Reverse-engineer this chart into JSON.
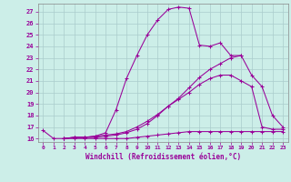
{
  "xlabel": "Windchill (Refroidissement éolien,°C)",
  "ylabel": "",
  "bg_color": "#cceee8",
  "line_color": "#990099",
  "grid_color": "#aacccc",
  "xlim": [
    -0.5,
    23.5
  ],
  "ylim": [
    15.7,
    27.7
  ],
  "yticks": [
    16,
    17,
    18,
    19,
    20,
    21,
    22,
    23,
    24,
    25,
    26,
    27
  ],
  "xticks": [
    0,
    1,
    2,
    3,
    4,
    5,
    6,
    7,
    8,
    9,
    10,
    11,
    12,
    13,
    14,
    15,
    16,
    17,
    18,
    19,
    20,
    21,
    22,
    23
  ],
  "lines": [
    {
      "x": [
        0,
        1,
        2,
        3,
        4,
        5,
        6,
        7,
        8,
        9,
        10,
        11,
        12,
        13,
        14,
        15,
        16,
        17,
        18,
        19
      ],
      "y": [
        16.7,
        16.0,
        16.0,
        16.1,
        16.1,
        16.2,
        16.5,
        18.5,
        21.2,
        23.2,
        25.0,
        26.3,
        27.2,
        27.4,
        27.3,
        24.1,
        24.0,
        24.3,
        23.2,
        23.2
      ]
    },
    {
      "x": [
        2,
        3,
        4,
        5,
        6,
        7,
        8,
        9,
        10,
        11,
        12,
        13,
        14,
        15,
        16,
        17,
        18,
        19,
        20,
        21,
        22,
        23
      ],
      "y": [
        16.0,
        16.1,
        16.1,
        16.2,
        16.3,
        16.4,
        16.6,
        17.0,
        17.5,
        18.1,
        18.8,
        19.4,
        20.0,
        20.7,
        21.2,
        21.5,
        21.5,
        21.0,
        20.5,
        17.0,
        16.8,
        16.8
      ]
    },
    {
      "x": [
        2,
        3,
        4,
        5,
        6,
        7,
        8,
        9,
        10,
        11,
        12,
        13,
        14,
        15,
        16,
        17,
        18,
        19,
        20,
        21,
        22,
        23
      ],
      "y": [
        16.0,
        16.0,
        16.0,
        16.0,
        16.0,
        16.0,
        16.0,
        16.1,
        16.2,
        16.3,
        16.4,
        16.5,
        16.6,
        16.6,
        16.6,
        16.6,
        16.6,
        16.6,
        16.6,
        16.6,
        16.6,
        16.6
      ]
    },
    {
      "x": [
        2,
        3,
        4,
        5,
        6,
        7,
        8,
        9,
        10,
        11,
        12,
        13,
        14,
        15,
        16,
        17,
        18,
        19,
        20,
        21,
        22,
        23
      ],
      "y": [
        16.0,
        16.1,
        16.1,
        16.1,
        16.2,
        16.3,
        16.5,
        16.8,
        17.3,
        18.0,
        18.8,
        19.5,
        20.4,
        21.3,
        22.0,
        22.5,
        23.0,
        23.2,
        21.5,
        20.5,
        18.0,
        17.0
      ]
    }
  ]
}
